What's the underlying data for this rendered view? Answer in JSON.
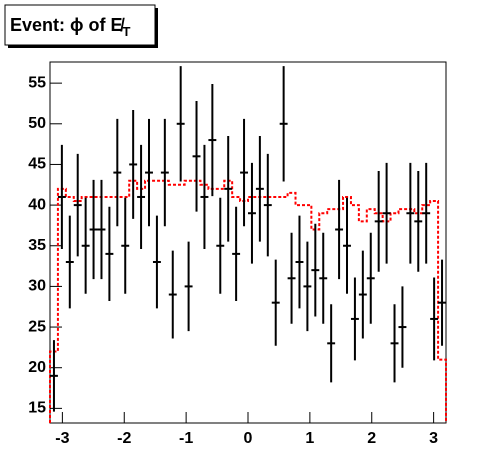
{
  "chart_data": {
    "type": "histogram",
    "title": {
      "main": "Event: ϕ of ",
      "symbol": "E̸",
      "subscript": "T"
    },
    "x": [
      -3.136,
      -3.008,
      -2.88,
      -2.752,
      -2.624,
      -2.496,
      -2.368,
      -2.24,
      -2.112,
      -1.984,
      -1.856,
      -1.728,
      -1.6,
      -1.472,
      -1.344,
      -1.216,
      -1.088,
      -0.96,
      -0.832,
      -0.704,
      -0.576,
      -0.448,
      -0.32,
      -0.192,
      -0.064,
      0.064,
      0.192,
      0.32,
      0.448,
      0.576,
      0.704,
      0.832,
      0.96,
      1.088,
      1.216,
      1.344,
      1.472,
      1.6,
      1.728,
      1.856,
      1.984,
      2.112,
      2.24,
      2.368,
      2.496,
      2.624,
      2.752,
      2.88,
      3.008,
      3.136
    ],
    "series": [
      {
        "color": "#000000",
        "style": "points",
        "values": [
          19,
          41,
          33,
          40,
          35,
          37,
          37,
          34,
          44,
          35,
          45,
          41,
          44,
          33,
          44,
          29,
          50,
          30,
          46,
          41,
          48,
          35,
          42,
          34,
          44,
          39,
          42,
          40,
          28,
          50,
          31,
          33,
          30,
          32,
          31,
          23,
          37,
          35,
          26,
          29,
          31,
          38,
          39,
          23,
          25,
          39,
          38,
          39,
          26,
          28
        ],
        "errors": [
          4.4,
          6.4,
          5.7,
          6.3,
          5.9,
          6.1,
          6.1,
          5.8,
          6.6,
          5.9,
          6.7,
          6.4,
          6.6,
          5.7,
          6.6,
          5.4,
          7.1,
          5.5,
          6.8,
          6.4,
          6.9,
          5.9,
          6.5,
          5.8,
          6.6,
          6.2,
          6.5,
          6.3,
          5.3,
          7.1,
          5.6,
          5.7,
          5.5,
          5.7,
          5.6,
          4.8,
          6.1,
          5.9,
          5.1,
          5.4,
          5.6,
          6.2,
          6.2,
          4.8,
          5.0,
          6.2,
          6.2,
          6.2,
          5.1,
          5.3
        ]
      },
      {
        "color": "#ff0000",
        "style": "step",
        "values": [
          22,
          42,
          41,
          40.5,
          41,
          41,
          41,
          41,
          41,
          41,
          43,
          42,
          43,
          43,
          43,
          42.5,
          42.5,
          43,
          43,
          42.5,
          42,
          42,
          43,
          41,
          40.5,
          41,
          41,
          41,
          41,
          41,
          41.5,
          40,
          40,
          37,
          39,
          39.5,
          39.5,
          41,
          40,
          38,
          39.5,
          39,
          38,
          39,
          39.5,
          39.5,
          39,
          40,
          40.5,
          21
        ]
      }
    ],
    "xlim": [
      -3.2,
      3.2
    ],
    "ylim": [
      13.2,
      57.6
    ],
    "xticks": [
      -3,
      -2,
      -1,
      0,
      1,
      2,
      3
    ],
    "yticks": [
      15,
      20,
      25,
      30,
      35,
      40,
      45,
      50,
      55
    ]
  }
}
